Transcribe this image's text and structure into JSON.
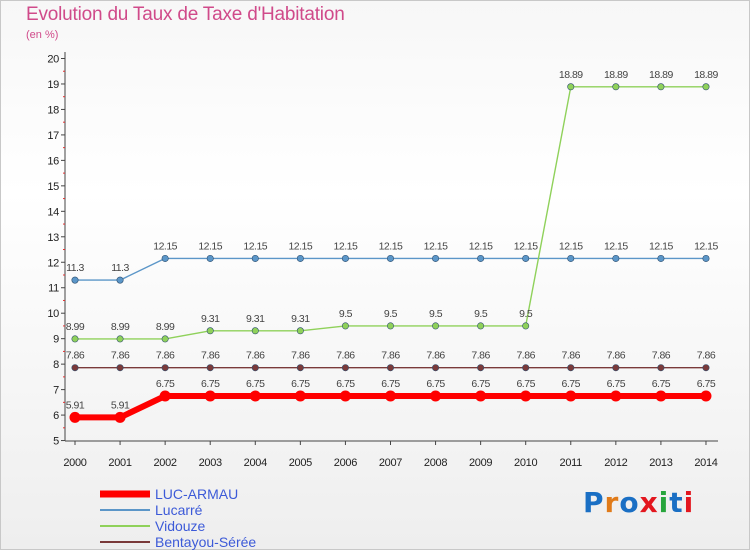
{
  "title": "Evolution du Taux de Taxe d'Habitation",
  "subtitle": "(en %)",
  "brand": {
    "text": "Proxiti",
    "colors": [
      "#1a6fc4",
      "#e07b1a",
      "#1a6fc4",
      "#e3161e",
      "#27a53c",
      "#1a6fc4",
      "#e3161e"
    ]
  },
  "chart_data": {
    "type": "line",
    "x": [
      2000,
      2001,
      2002,
      2003,
      2004,
      2005,
      2006,
      2007,
      2008,
      2009,
      2010,
      2011,
      2012,
      2013,
      2014
    ],
    "ylim": [
      5,
      20
    ],
    "yticks": [
      5,
      6,
      7,
      8,
      9,
      10,
      11,
      12,
      13,
      14,
      15,
      16,
      17,
      18,
      19,
      20
    ],
    "grid": false,
    "legend_position": "bottom-left",
    "series": [
      {
        "name": "Lucarré",
        "color": "#5b96c8",
        "values": [
          11.3,
          11.3,
          12.15,
          12.15,
          12.15,
          12.15,
          12.15,
          12.15,
          12.15,
          12.15,
          12.15,
          12.15,
          12.15,
          12.15,
          12.15
        ],
        "labels": [
          "11.3",
          "11.3",
          "12.15",
          "12.15",
          "12.15",
          "12.15",
          "12.15",
          "12.15",
          "12.15",
          "12.15",
          "12.15",
          "12.15",
          "12.15",
          "12.15",
          "12.15"
        ]
      },
      {
        "name": "Vidouze",
        "color": "#8fd15a",
        "values": [
          8.99,
          8.99,
          8.99,
          9.31,
          9.31,
          9.31,
          9.5,
          9.5,
          9.5,
          9.5,
          9.5,
          18.89,
          18.89,
          18.89,
          18.89
        ],
        "labels": [
          "8.99",
          "8.99",
          "8.99",
          "9.31",
          "9.31",
          "9.31",
          "9.5",
          "9.5",
          "9.5",
          "9.5",
          "9.5",
          "18.89",
          "18.89",
          "18.89",
          "18.89"
        ]
      },
      {
        "name": "Bentayou-Sérée",
        "color": "#7a3a3a",
        "values": [
          7.86,
          7.86,
          7.86,
          7.86,
          7.86,
          7.86,
          7.86,
          7.86,
          7.86,
          7.86,
          7.86,
          7.86,
          7.86,
          7.86,
          7.86
        ],
        "labels": [
          "7.86",
          "7.86",
          "7.86",
          "7.86",
          "7.86",
          "7.86",
          "7.86",
          "7.86",
          "7.86",
          "7.86",
          "7.86",
          "7.86",
          "7.86",
          "7.86",
          "7.86"
        ]
      },
      {
        "name": "LUC-ARMAU",
        "color": "#ff0000",
        "values": [
          5.91,
          5.91,
          6.75,
          6.75,
          6.75,
          6.75,
          6.75,
          6.75,
          6.75,
          6.75,
          6.75,
          6.75,
          6.75,
          6.75,
          6.75
        ],
        "labels": [
          "5.91",
          "5.91",
          "6.75",
          "6.75",
          "6.75",
          "6.75",
          "6.75",
          "6.75",
          "6.75",
          "6.75",
          "6.75",
          "6.75",
          "6.75",
          "6.75",
          "6.75"
        ]
      }
    ],
    "legend": [
      {
        "name": "LUC-ARMAU",
        "color": "#ff0000",
        "text_color": "#3c5ad8"
      },
      {
        "name": "Lucarré",
        "color": "#5b96c8",
        "text_color": "#3c5ad8"
      },
      {
        "name": "Vidouze",
        "color": "#8fd15a",
        "text_color": "#3c5ad8"
      },
      {
        "name": "Bentayou-Sérée",
        "color": "#7a3a3a",
        "text_color": "#3c5ad8"
      }
    ]
  }
}
